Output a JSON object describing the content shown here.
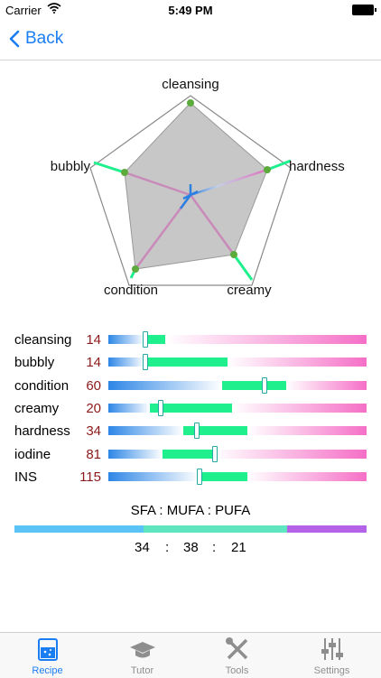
{
  "status_bar": {
    "carrier": "Carrier",
    "time": "5:49 PM"
  },
  "nav": {
    "back_label": "Back"
  },
  "radar": {
    "axes": [
      "cleansing",
      "hardness",
      "creamy",
      "condition",
      "bubbly"
    ]
  },
  "properties": [
    {
      "label": "cleansing",
      "value": "14",
      "range": [
        0.14,
        0.22
      ],
      "marker": 0.14
    },
    {
      "label": "bubbly",
      "value": "14",
      "range": [
        0.14,
        0.46
      ],
      "marker": 0.14
    },
    {
      "label": "condition",
      "value": "60",
      "range": [
        0.44,
        0.69
      ],
      "marker": 0.6
    },
    {
      "label": "creamy",
      "value": "20",
      "range": [
        0.16,
        0.48
      ],
      "marker": 0.2
    },
    {
      "label": "hardness",
      "value": "34",
      "range": [
        0.29,
        0.54
      ],
      "marker": 0.34
    },
    {
      "label": "iodine",
      "value": "81",
      "range": [
        0.21,
        0.41
      ],
      "marker": 0.41
    },
    {
      "label": "INS",
      "value": "115",
      "range": [
        0.35,
        0.54
      ],
      "marker": 0.35
    }
  ],
  "fatty_acids": {
    "title": "SFA : MUFA : PUFA",
    "sfa": "34",
    "mufa": "38",
    "pufa": "21",
    "colors": {
      "sfa": "#5bc3f5",
      "mufa": "#5fe5c0",
      "pufa": "#b463e8"
    }
  },
  "tabs": [
    {
      "label": "Recipe",
      "icon": "beaker-icon",
      "active": true
    },
    {
      "label": "Tutor",
      "icon": "graduation-cap-icon",
      "active": false
    },
    {
      "label": "Tools",
      "icon": "tools-icon",
      "active": false
    },
    {
      "label": "Settings",
      "icon": "sliders-icon",
      "active": false
    }
  ],
  "colors": {
    "accent": "#1a7df2",
    "value_text": "#8b1a1a",
    "range_green": "#1fef8c"
  }
}
